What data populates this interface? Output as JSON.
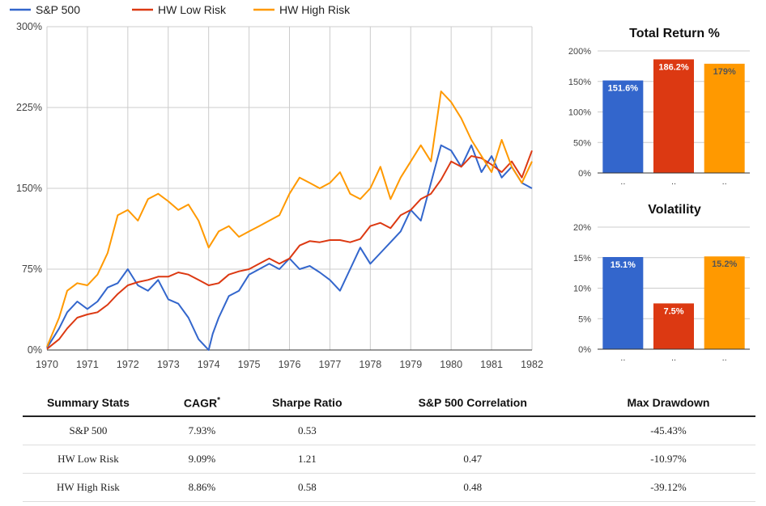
{
  "chart_data": [
    {
      "type": "line",
      "x_ticks": [
        "1970",
        "1971",
        "1972",
        "1973",
        "1974",
        "1975",
        "1976",
        "1977",
        "1978",
        "1979",
        "1980",
        "1981",
        "1982"
      ],
      "y_ticks": [
        "0%",
        "75%",
        "150%",
        "225%",
        "300%"
      ],
      "ylim": [
        0,
        300
      ],
      "xlim": [
        1970,
        1982
      ],
      "series": [
        {
          "name": "S&P 500",
          "color": "#3366cc",
          "x": [
            1970,
            1970.3,
            1970.5,
            1970.75,
            1971,
            1971.25,
            1971.5,
            1971.75,
            1972,
            1972.25,
            1972.5,
            1972.75,
            1973,
            1973.25,
            1973.5,
            1973.75,
            1974,
            1974.1,
            1974.25,
            1974.5,
            1974.75,
            1975,
            1975.25,
            1975.5,
            1975.75,
            1976,
            1976.25,
            1976.5,
            1976.75,
            1977,
            1977.25,
            1977.5,
            1977.75,
            1978,
            1978.25,
            1978.5,
            1978.75,
            1979,
            1979.25,
            1979.5,
            1979.75,
            1980,
            1980.25,
            1980.5,
            1980.75,
            1981,
            1981.25,
            1981.5,
            1981.75,
            1982
          ],
          "values": [
            2,
            20,
            35,
            45,
            38,
            45,
            58,
            62,
            75,
            60,
            55,
            65,
            47,
            43,
            30,
            10,
            0,
            15,
            30,
            50,
            55,
            70,
            75,
            80,
            75,
            85,
            75,
            78,
            72,
            65,
            55,
            75,
            95,
            80,
            90,
            100,
            110,
            130,
            120,
            155,
            190,
            185,
            170,
            190,
            165,
            180,
            160,
            170,
            155,
            150
          ]
        },
        {
          "name": "HW Low Risk",
          "color": "#dc3912",
          "x": [
            1970,
            1970.3,
            1970.5,
            1970.75,
            1971,
            1971.25,
            1971.5,
            1971.75,
            1972,
            1972.25,
            1972.5,
            1972.75,
            1973,
            1973.25,
            1973.5,
            1973.75,
            1974,
            1974.25,
            1974.5,
            1974.75,
            1975,
            1975.25,
            1975.5,
            1975.75,
            1976,
            1976.25,
            1976.5,
            1976.75,
            1977,
            1977.25,
            1977.5,
            1977.75,
            1978,
            1978.25,
            1978.5,
            1978.75,
            1979,
            1979.25,
            1979.5,
            1979.75,
            1980,
            1980.25,
            1980.5,
            1980.75,
            1981,
            1981.25,
            1981.5,
            1981.75,
            1982
          ],
          "values": [
            1,
            10,
            20,
            30,
            33,
            35,
            42,
            52,
            60,
            63,
            65,
            68,
            68,
            72,
            70,
            65,
            60,
            62,
            70,
            73,
            75,
            80,
            85,
            80,
            85,
            97,
            101,
            100,
            102,
            102,
            100,
            103,
            115,
            118,
            113,
            125,
            130,
            140,
            145,
            158,
            175,
            170,
            180,
            178,
            172,
            165,
            175,
            160,
            185
          ]
        },
        {
          "name": "HW High Risk",
          "color": "#ff9900",
          "x": [
            1970,
            1970.3,
            1970.5,
            1970.75,
            1971,
            1971.25,
            1971.5,
            1971.75,
            1972,
            1972.25,
            1972.5,
            1972.75,
            1973,
            1973.25,
            1973.5,
            1973.75,
            1974,
            1974.25,
            1974.5,
            1974.75,
            1975,
            1975.25,
            1975.5,
            1975.75,
            1976,
            1976.25,
            1976.5,
            1976.75,
            1977,
            1977.25,
            1977.5,
            1977.75,
            1978,
            1978.25,
            1978.5,
            1978.75,
            1979,
            1979.25,
            1979.5,
            1979.75,
            1980,
            1980.25,
            1980.5,
            1980.75,
            1981,
            1981.25,
            1981.5,
            1981.75,
            1982
          ],
          "values": [
            3,
            30,
            55,
            62,
            60,
            70,
            90,
            125,
            130,
            120,
            140,
            145,
            138,
            130,
            135,
            120,
            95,
            110,
            115,
            105,
            110,
            115,
            120,
            125,
            145,
            160,
            155,
            150,
            155,
            165,
            145,
            140,
            150,
            170,
            140,
            160,
            175,
            190,
            175,
            240,
            230,
            215,
            195,
            180,
            165,
            195,
            170,
            155,
            175
          ]
        }
      ]
    },
    {
      "type": "bar",
      "title": "Total Return %",
      "y_ticks": [
        "0%",
        "50%",
        "100%",
        "150%",
        "200%"
      ],
      "ylim": [
        0,
        200
      ],
      "values": [
        151.6,
        186.2,
        179
      ],
      "labels": [
        "151.6%",
        "186.2%",
        "179%"
      ],
      "colors": [
        "#3366cc",
        "#dc3912",
        "#ff9900"
      ]
    },
    {
      "type": "bar",
      "title": "Volatility",
      "y_ticks": [
        "0%",
        "5%",
        "10%",
        "15%",
        "20%"
      ],
      "ylim": [
        0,
        20
      ],
      "values": [
        15.1,
        7.5,
        15.2
      ],
      "labels": [
        "15.1%",
        "7.5%",
        "15.2%"
      ],
      "colors": [
        "#3366cc",
        "#dc3912",
        "#ff9900"
      ]
    }
  ],
  "table": {
    "headers": [
      "Summary Stats",
      "CAGR*",
      "Sharpe Ratio",
      "S&P 500 Correlation",
      "Max Drawdown"
    ],
    "rows": [
      [
        "S&P 500",
        "7.93%",
        "0.53",
        "",
        "-45.43%"
      ],
      [
        "HW Low Risk",
        "9.09%",
        "1.21",
        "0.47",
        "-10.97%"
      ],
      [
        "HW High Risk",
        "8.86%",
        "0.58",
        "0.48",
        "-39.12%"
      ]
    ]
  }
}
